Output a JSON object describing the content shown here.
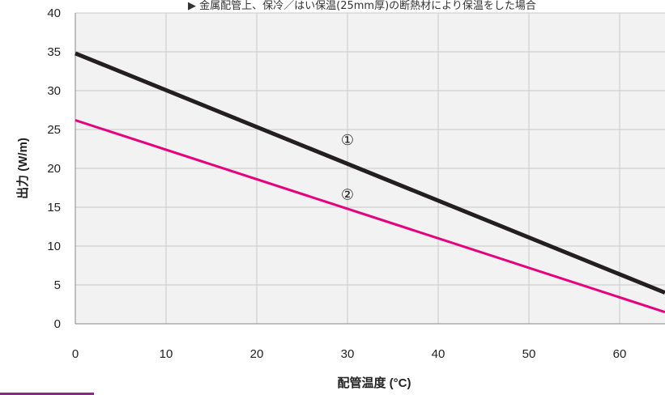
{
  "top_note": "▶ 金属配管上、保冷／はい保温(25mm厚)の断熱材により保温をした場合",
  "chart_data": {
    "type": "line",
    "xlabel": "配管温度 (°C)",
    "ylabel": "出力 (W/m)",
    "xlim": [
      0,
      65
    ],
    "ylim": [
      0,
      40
    ],
    "x_ticks": [
      0,
      10,
      20,
      30,
      40,
      50,
      60
    ],
    "y_ticks": [
      0,
      5,
      10,
      15,
      20,
      25,
      30,
      35,
      40
    ],
    "grid": true,
    "series": [
      {
        "name": "①",
        "color": "#231f20",
        "x": [
          0,
          65
        ],
        "y": [
          34.8,
          4.0
        ],
        "label_at": [
          30,
          23
        ]
      },
      {
        "name": "②",
        "color": "#e6007e",
        "x": [
          0,
          65
        ],
        "y": [
          26.2,
          1.5
        ],
        "label_at": [
          30,
          16
        ]
      }
    ]
  },
  "colors": {
    "plot_bg": "#f2f2f2",
    "grid": "#c8c8c8",
    "accent_bar": "#8b2a8b"
  }
}
